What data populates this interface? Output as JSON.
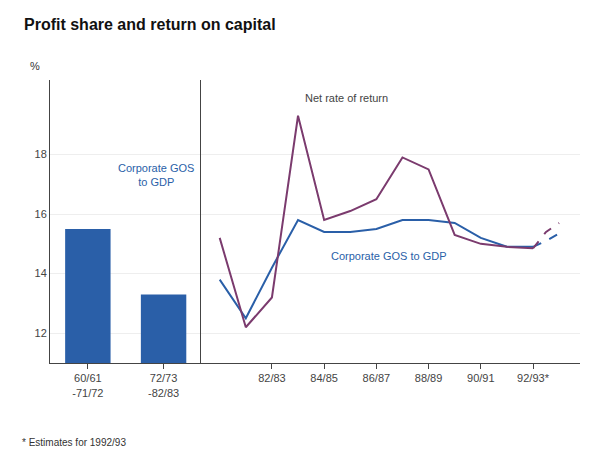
{
  "chart_data": [
    {
      "type": "bar",
      "title": "Profit share and return on capital",
      "ylabel": "%",
      "footnote": "* Estimates for 1992/93",
      "categories": [
        "60/61\n-71/72",
        "72/73\n-82/83"
      ],
      "values": [
        15.5,
        13.3
      ],
      "color": "#2a5fa8",
      "ylim": [
        11.0,
        20.5
      ],
      "yticks": [
        12,
        14,
        16,
        18
      ],
      "grid": true,
      "annotations": [
        {
          "text": "Corporate GOS\nto GDP",
          "x": 0.9,
          "y": 16.8,
          "color": "#2a5fa8"
        }
      ]
    },
    {
      "type": "line",
      "x": [
        80,
        81,
        82,
        83,
        84,
        85,
        86,
        87,
        88,
        89,
        90,
        91,
        92
      ],
      "xlim": [
        79.3,
        93.8
      ],
      "xticks": [
        {
          "value": 82,
          "label": "82/83"
        },
        {
          "value": 84,
          "label": "84/85"
        },
        {
          "value": 86,
          "label": "86/87"
        },
        {
          "value": 88,
          "label": "88/89"
        },
        {
          "value": 90,
          "label": "90/91"
        },
        {
          "value": 92,
          "label": "92/93*"
        }
      ],
      "ylim": [
        11.0,
        20.5
      ],
      "yticks": [
        12,
        14,
        16,
        18
      ],
      "grid": true,
      "tick_labels": "x",
      "series": [
        {
          "color": "#2a5fa8",
          "line_style": "solid",
          "values": [
            13.8,
            12.5,
            14.2,
            15.8,
            15.4,
            15.4,
            15.5,
            15.8,
            15.8,
            15.7,
            15.2,
            14.9,
            14.9
          ]
        },
        {
          "color": "#7b3b6e",
          "line_style": "solid",
          "values": [
            15.2,
            12.2,
            13.2,
            19.3,
            15.8,
            16.1,
            16.5,
            17.9,
            17.5,
            15.3,
            15.0,
            14.9,
            14.85
          ]
        },
        {
          "color": "#2a5fa8",
          "line_style": "dashed",
          "x": [
            92,
            92.5,
            93
          ],
          "values": [
            14.9,
            15.1,
            15.35
          ]
        },
        {
          "color": "#7b3b6e",
          "line_style": "dashed",
          "x": [
            92,
            92.5,
            93
          ],
          "values": [
            14.85,
            15.4,
            15.7
          ]
        }
      ],
      "annotations": [
        {
          "text": "Net rate of return",
          "x": 83.2,
          "y": 19.9,
          "color": "#444444"
        },
        {
          "text": "Corporate GOS to GDP",
          "x": 84.2,
          "y": 14.6,
          "color": "#2a5fa8"
        }
      ]
    }
  ]
}
